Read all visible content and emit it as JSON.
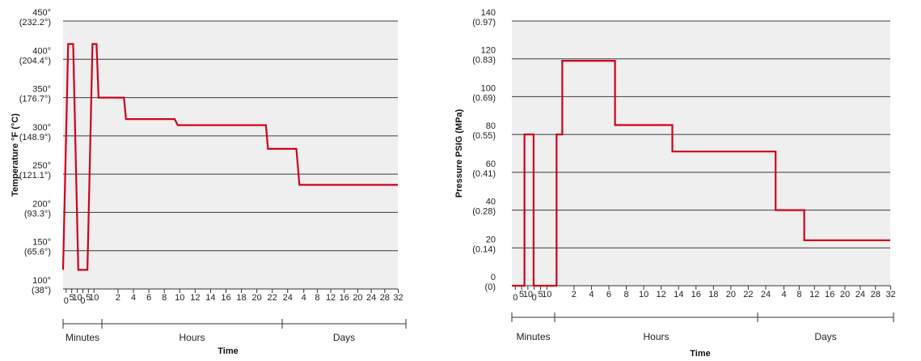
{
  "chart_data": [
    {
      "type": "line",
      "ylabel": "Temperature °F (°C)",
      "xlabel": "Time",
      "ylim": [
        100,
        450
      ],
      "yticks": [
        {
          "value": 450,
          "label": "450°",
          "sub": "(232.2°)"
        },
        {
          "value": 400,
          "label": "400°",
          "sub": "(204.4°)"
        },
        {
          "value": 350,
          "label": "350°",
          "sub": "(176.7°)"
        },
        {
          "value": 300,
          "label": "300°",
          "sub": "(148.9°)"
        },
        {
          "value": 250,
          "label": "250°",
          "sub": "(121.1°)"
        },
        {
          "value": 200,
          "label": "200°",
          "sub": "(93.3°)"
        },
        {
          "value": 150,
          "label": "150°",
          "sub": "(65.6°)"
        },
        {
          "value": 100,
          "label": "100°",
          "sub": "(38°)"
        }
      ],
      "segments": [
        {
          "name": "Minutes",
          "ticks": [
            "0",
            "5",
            "10",
            "0",
            "5",
            "10"
          ]
        },
        {
          "name": "Hours",
          "ticks": [
            "2",
            "4",
            "6",
            "8",
            "10",
            "12",
            "14",
            "16",
            "18",
            "20",
            "22",
            "24"
          ]
        },
        {
          "name": "Days",
          "ticks": [
            "4",
            "8",
            "12",
            "16",
            "20",
            "24",
            "28",
            "32"
          ]
        }
      ],
      "series": [
        {
          "color": "#d0021b",
          "points": [
            [
              0,
              125
            ],
            [
              0.5,
              420
            ],
            [
              1,
              420
            ],
            [
              1.5,
              125
            ],
            [
              2.4,
              125
            ],
            [
              2.9,
              420
            ],
            [
              3.3,
              420
            ],
            [
              3.5,
              350
            ],
            [
              6,
              350
            ],
            [
              6.2,
              322
            ],
            [
              11,
              322
            ],
            [
              11.3,
              314
            ],
            [
              20,
              314
            ],
            [
              20.2,
              283
            ],
            [
              23,
              283
            ],
            [
              23.3,
              236
            ],
            [
              33,
              236
            ]
          ]
        }
      ]
    },
    {
      "type": "line",
      "ylabel": "Pressure PSIG (MPa)",
      "xlabel": "Time",
      "ylim": [
        0,
        140
      ],
      "yticks": [
        {
          "value": 140,
          "label": "140",
          "sub": "(0.97)"
        },
        {
          "value": 120,
          "label": "120",
          "sub": "(0.83)"
        },
        {
          "value": 100,
          "label": "100",
          "sub": "(0.69)"
        },
        {
          "value": 80,
          "label": "80",
          "sub": "(0.55)"
        },
        {
          "value": 60,
          "label": "60",
          "sub": "(0.41)"
        },
        {
          "value": 40,
          "label": "40",
          "sub": "(0.28)"
        },
        {
          "value": 20,
          "label": "20",
          "sub": "(0.14)"
        },
        {
          "value": 0,
          "label": "0",
          "sub": "(0)"
        }
      ],
      "segments": [
        {
          "name": "Minutes",
          "ticks": [
            "0",
            "5",
            "10",
            "0",
            "5",
            "10"
          ]
        },
        {
          "name": "Hours",
          "ticks": [
            "2",
            "4",
            "6",
            "8",
            "10",
            "12",
            "14",
            "16",
            "18",
            "20",
            "22",
            "24"
          ]
        },
        {
          "name": "Days",
          "ticks": [
            "4",
            "8",
            "12",
            "16",
            "20",
            "24",
            "28",
            "32"
          ]
        }
      ],
      "series": [
        {
          "color": "#d0021b",
          "points": [
            [
              0,
              0
            ],
            [
              1.1,
              0
            ],
            [
              1.1,
              80
            ],
            [
              1.9,
              80
            ],
            [
              1.9,
              0
            ],
            [
              3.9,
              0
            ],
            [
              3.9,
              80
            ],
            [
              4.4,
              80
            ],
            [
              4.4,
              119
            ],
            [
              9,
              119
            ],
            [
              9,
              85
            ],
            [
              14,
              85
            ],
            [
              14,
              71
            ],
            [
              23,
              71
            ],
            [
              23,
              40
            ],
            [
              25.5,
              40
            ],
            [
              25.5,
              24
            ],
            [
              33,
              24
            ]
          ]
        }
      ]
    }
  ]
}
